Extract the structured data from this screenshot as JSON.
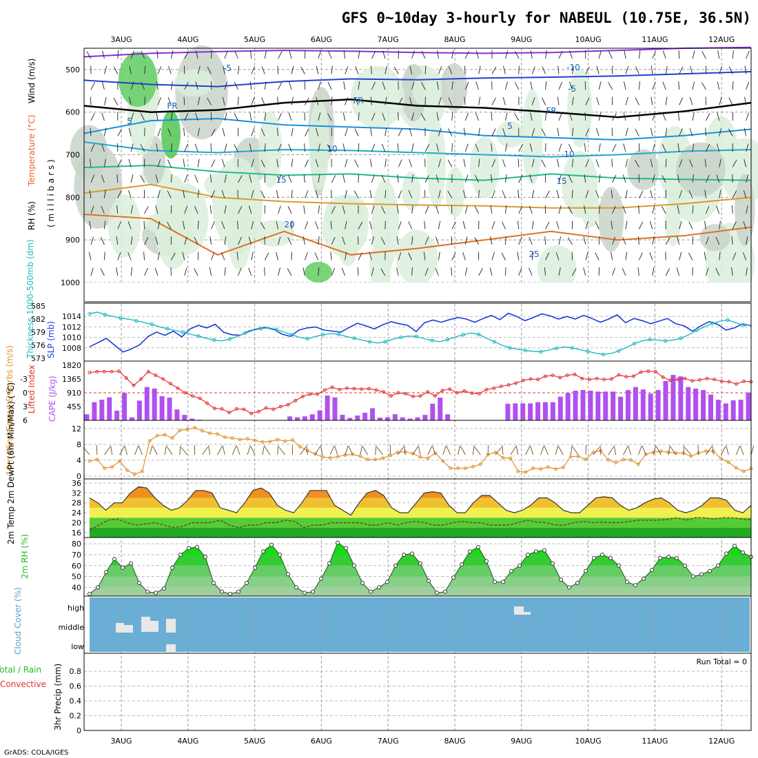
{
  "page": {
    "title": "GFS 0~10day 3-hourly for NABEUL (10.75E, 36.5N)",
    "credit": "GrADS: COLA/IGES"
  },
  "colors": {
    "temp_label": "#e8602c",
    "wind_label": "#000000",
    "rh_green": "#22bb22",
    "slp": "#1a3bd6",
    "thickness": "#20b8c0",
    "lifted": "#e03030",
    "cape": "#b050f0",
    "wind10": "#e0902c",
    "barb": "#704818",
    "cloud": "#6aaed6"
  },
  "chart_data": [
    {
      "id": "meteogram-axis",
      "type": "line",
      "x_tick_labels": [
        "3AUG",
        "4AUG",
        "5AUG",
        "6AUG",
        "7AUG",
        "8AUG",
        "9AUG",
        "10AUG",
        "11AUG",
        "12AUG"
      ],
      "x_range_days": [
        -0.5,
        9.3
      ]
    },
    {
      "id": "upper-air",
      "type": "heatmap",
      "ylabel_parts": [
        "RH (%)",
        "Temperature (°C)",
        "Wind (m/s)"
      ],
      "ylabel_units": "( m i l l i b a r s )",
      "yticks": [
        500,
        600,
        700,
        800,
        900,
        1000
      ],
      "ylim": [
        450,
        1000
      ],
      "isotherms": [
        {
          "label": "-10",
          "color": "#8a2be2",
          "values": [
            470,
            462,
            458,
            455,
            457,
            460,
            462,
            460,
            455,
            450,
            448
          ]
        },
        {
          "label": "-5",
          "color": "#2040d0",
          "values": [
            525,
            535,
            540,
            528,
            522,
            524,
            520,
            518,
            515,
            510,
            505
          ]
        },
        {
          "label": "FR",
          "color": "#000000",
          "values": [
            585,
            600,
            595,
            578,
            570,
            585,
            590,
            600,
            612,
            598,
            578
          ]
        },
        {
          "label": "5",
          "color": "#1890e0",
          "values": [
            650,
            620,
            615,
            630,
            635,
            640,
            655,
            660,
            665,
            655,
            640
          ]
        },
        {
          "label": "10",
          "color": "#20a8c8",
          "values": [
            670,
            690,
            695,
            688,
            690,
            695,
            700,
            705,
            700,
            692,
            688
          ]
        },
        {
          "label": "15",
          "color": "#20b890",
          "values": [
            730,
            725,
            740,
            748,
            745,
            755,
            760,
            745,
            755,
            758,
            760
          ]
        },
        {
          "label": "20",
          "color": "#d89a30",
          "values": [
            790,
            770,
            800,
            810,
            815,
            818,
            820,
            825,
            825,
            815,
            800
          ]
        },
        {
          "label": "25",
          "color": "#e07020",
          "values": [
            840,
            850,
            935,
            880,
            935,
            920,
            900,
            880,
            900,
            890,
            870
          ]
        }
      ],
      "contour_labels": [
        "5",
        "-5",
        "FR",
        "FR",
        "FR",
        "5",
        "10",
        "10",
        "15",
        "15",
        "20",
        "25",
        "-10",
        "-5"
      ]
    },
    {
      "id": "slp-thickness",
      "type": "line",
      "ylabel_slp": "SLP (mb)",
      "ylabel_thk": "Thickness 1000-500mb (dm)",
      "slp_ticks": [
        "1014",
        "1012",
        "1010",
        "1008"
      ],
      "thk_ticks": [
        "585",
        "582",
        "579",
        "576",
        "573"
      ],
      "slp_ylim": [
        1006,
        1016
      ],
      "thk_ylim": [
        573,
        585
      ],
      "series": [
        {
          "name": "SLP",
          "values": [
            1008.2,
            1009.0,
            1009.8,
            1008.5,
            1007.2,
            1007.8,
            1008.6,
            1010.2,
            1011.0,
            1010.4,
            1011.2,
            1010.1,
            1011.6,
            1012.3,
            1011.8,
            1012.5,
            1011.0,
            1010.5,
            1010.4,
            1011.2,
            1011.6,
            1011.9,
            1011.5,
            1010.6,
            1010.2,
            1011.4,
            1011.8,
            1012.0,
            1011.4,
            1011.2,
            1011.0,
            1011.9,
            1012.7,
            1012.2,
            1011.6,
            1012.4,
            1013.0,
            1012.6,
            1012.3,
            1011.1,
            1012.8,
            1013.3,
            1012.9,
            1013.4,
            1013.8,
            1013.5,
            1012.9,
            1013.6,
            1014.2,
            1013.4,
            1014.6,
            1014.0,
            1013.2,
            1013.8,
            1014.5,
            1014.1,
            1013.5,
            1014.0,
            1013.5,
            1014.2,
            1013.6,
            1012.9,
            1013.5,
            1014.3,
            1012.8,
            1013.6,
            1013.2,
            1012.6,
            1013.1,
            1013.6,
            1012.6,
            1012.2,
            1011.2,
            1012.2,
            1013.0,
            1012.5,
            1011.4,
            1011.8,
            1012.6,
            1012.2
          ]
        },
        {
          "name": "Thickness",
          "values": [
            583.2,
            583.6,
            583.0,
            582.6,
            582.2,
            582.0,
            581.6,
            581.2,
            580.8,
            580.2,
            579.8,
            579.4,
            579.0,
            578.5,
            578.1,
            577.6,
            577.2,
            577.0,
            577.4,
            578.0,
            578.8,
            579.4,
            579.8,
            580.0,
            579.6,
            579.0,
            578.4,
            577.8,
            577.5,
            578.0,
            578.4,
            578.7,
            578.5,
            578.0,
            577.6,
            577.2,
            576.8,
            576.5,
            576.8,
            577.4,
            577.8,
            578.1,
            578.0,
            577.5,
            577.1,
            576.8,
            577.3,
            577.9,
            578.4,
            578.8,
            578.5,
            577.6,
            576.8,
            576.0,
            575.4,
            575.1,
            574.8,
            574.6,
            574.5,
            574.9,
            575.3,
            575.6,
            575.4,
            575.0,
            574.6,
            574.2,
            573.9,
            574.1,
            574.7,
            575.5,
            576.4,
            577.0,
            577.3,
            577.2,
            577.0,
            577.2,
            577.6,
            578.4,
            579.4,
            580.2,
            581.0,
            581.5,
            581.8,
            581.2,
            580.6,
            580.6
          ]
        }
      ]
    },
    {
      "id": "cape-li",
      "type": "bar",
      "ylabel_li": "Lifted Index",
      "ylabel_cape": "CAPE (J/kg)",
      "li_ticks": [
        "-3",
        "0",
        "3",
        "6"
      ],
      "cape_ticks": [
        "1820",
        "1365",
        "910",
        "455"
      ],
      "li_ylim": [
        6,
        -6
      ],
      "cape_ylim": [
        0,
        1820
      ],
      "series": [
        {
          "name": "CAPE",
          "values": [
            200,
            600,
            680,
            760,
            320,
            900,
            100,
            650,
            1100,
            1050,
            800,
            750,
            360,
            180,
            60,
            20,
            0,
            0,
            0,
            0,
            0,
            0,
            0,
            0,
            0,
            0,
            10,
            130,
            100,
            130,
            200,
            330,
            820,
            760,
            180,
            80,
            160,
            250,
            400,
            90,
            100,
            200,
            100,
            60,
            100,
            180,
            550,
            750,
            200,
            0,
            0,
            0,
            0,
            0,
            0,
            0,
            550,
            560,
            560,
            560,
            600,
            600,
            600,
            780,
            900,
            980,
            1000,
            980,
            950,
            950,
            950,
            780,
            1000,
            1100,
            1020,
            880,
            1000,
            1300,
            1500,
            1450,
            1100,
            1050,
            1000,
            850,
            680,
            560,
            660,
            680,
            920
          ]
        },
        {
          "name": "Lifted Index",
          "values": [
            -4.4,
            -4.6,
            -4.6,
            -4.6,
            -4.7,
            -3.2,
            -1.6,
            -3.0,
            -4.6,
            -3.8,
            -3.0,
            -2.0,
            -1.0,
            0.0,
            0.7,
            1.2,
            2.3,
            3.4,
            3.5,
            4.3,
            3.5,
            3.6,
            4.5,
            4.1,
            3.3,
            3.6,
            3.0,
            2.6,
            1.7,
            0.8,
            0.3,
            0.3,
            -0.6,
            -1.2,
            -0.7,
            -1.0,
            -0.9,
            -0.8,
            -0.9,
            -0.6,
            -0.2,
            0.7,
            0.0,
            0.2,
            0.8,
            0.7,
            -0.2,
            0.7,
            -0.5,
            -0.8,
            0.0,
            -0.4,
            0.1,
            0.2,
            -0.7,
            -1.0,
            -1.4,
            -1.7,
            -2.1,
            -2.7,
            -3.0,
            -2.9,
            -3.6,
            -3.8,
            -3.3,
            -3.8,
            -4.0,
            -3.1,
            -2.9,
            -3.1,
            -2.9,
            -3.0,
            -3.9,
            -3.5,
            -3.6,
            -4.5,
            -4.7,
            -4.6,
            -3.4,
            -2.7,
            -2.9,
            -3.1,
            -2.6,
            -2.8,
            -3.1,
            -2.9,
            -2.5,
            -2.4,
            -1.9,
            -2.5,
            -2.4
          ]
        }
      ]
    },
    {
      "id": "wind10m",
      "type": "line",
      "ylabel": "10m Wind Speed & Barbs (m/s)",
      "yticks": [
        "12",
        "8",
        "4",
        "0"
      ],
      "ylim": [
        0,
        13
      ],
      "series": [
        {
          "name": "10m wind speed",
          "values": [
            3.8,
            4.2,
            2.0,
            2.3,
            3.8,
            1.5,
            0.5,
            1.2,
            8.9,
            10.2,
            10.4,
            9.6,
            11.5,
            11.8,
            12.2,
            11.4,
            10.8,
            10.6,
            9.8,
            9.6,
            9.2,
            9.4,
            9.0,
            8.6,
            8.7,
            9.2,
            8.8,
            9.1,
            7.4,
            6.4,
            5.6,
            4.8,
            4.6,
            4.9,
            5.3,
            5.5,
            5.0,
            4.2,
            4.2,
            4.5,
            5.2,
            6.0,
            6.1,
            5.7,
            4.8,
            4.5,
            5.8,
            3.8,
            2.0,
            2.0,
            2.0,
            2.4,
            3.0,
            5.4,
            6.0,
            4.6,
            4.5,
            1.2,
            1.0,
            2.0,
            1.8,
            2.3,
            1.8,
            2.2,
            4.9,
            5.0,
            4.2,
            6.0,
            6.4,
            4.1,
            3.4,
            4.2,
            4.1,
            3.0,
            5.5,
            6.0,
            6.3,
            6.0,
            5.8,
            5.8,
            5.0,
            5.8,
            6.3,
            6.3,
            4.4,
            3.5,
            2.1,
            1.2,
            1.9
          ]
        }
      ]
    },
    {
      "id": "temp2m",
      "type": "area",
      "ylabel": "2m Temp 2m DewPt (6hr Min/Max) (°C)",
      "yticks": [
        "36",
        "32",
        "28",
        "24",
        "20",
        "16"
      ],
      "ylim": [
        14,
        36
      ],
      "series": [
        {
          "name": "2m Temp",
          "values": [
            30,
            28,
            25,
            28,
            28,
            32,
            34.5,
            34,
            30,
            27,
            25,
            26,
            29,
            33,
            33,
            32,
            26,
            25,
            24,
            28,
            33,
            34,
            32,
            27,
            25,
            24,
            28,
            33,
            33,
            33,
            27,
            25,
            23,
            28,
            32,
            33,
            31,
            26,
            24,
            24,
            28,
            32,
            32.5,
            32,
            27,
            24,
            24,
            28,
            31,
            31,
            28,
            25,
            24,
            25,
            27,
            30,
            30,
            28,
            25,
            24,
            24,
            27,
            30,
            30.5,
            30,
            27,
            25,
            26,
            28,
            29.5,
            30,
            28,
            25,
            24,
            25,
            27,
            30,
            30,
            29,
            25,
            24,
            27
          ]
        },
        {
          "name": "2m DewPt",
          "values": [
            17,
            19,
            21,
            21.5,
            20,
            19,
            19.5,
            20,
            19,
            18,
            18.5,
            20,
            20,
            20,
            21,
            19,
            18,
            19,
            19,
            20,
            20,
            21,
            20.5,
            18,
            19,
            19,
            20,
            20,
            20,
            20,
            19,
            19,
            20,
            19,
            20,
            20.5,
            20,
            19,
            19,
            20,
            20.5,
            20,
            20,
            19,
            19,
            19,
            20,
            21,
            20.2,
            20,
            19,
            19,
            20,
            20.5,
            20,
            20.2,
            20,
            20,
            20.5,
            21,
            21,
            21,
            21.3,
            22,
            21,
            22,
            22,
            21.5,
            22,
            22,
            21.5,
            21.2
          ]
        }
      ]
    },
    {
      "id": "rh2m",
      "type": "area",
      "ylabel": "2m RH (%)",
      "yticks": [
        "80",
        "70",
        "60",
        "50",
        "40"
      ],
      "ylim": [
        32,
        82
      ],
      "series": [
        {
          "name": "2m RH",
          "values": [
            34,
            40,
            54,
            66,
            58,
            62,
            44,
            36,
            35,
            39,
            58,
            70,
            76,
            77,
            68,
            44,
            36,
            34,
            36,
            44,
            58,
            73,
            79,
            70,
            52,
            40,
            35,
            36,
            48,
            62,
            81,
            76,
            60,
            44,
            36,
            40,
            45,
            60,
            70,
            71,
            62,
            46,
            35,
            36,
            49,
            61,
            73,
            77,
            64,
            45,
            45,
            55,
            60,
            70,
            73,
            74,
            62,
            47,
            40,
            44,
            55,
            67,
            70,
            67,
            60,
            45,
            42,
            48,
            56,
            67,
            68,
            67,
            60,
            50,
            52,
            55,
            60,
            71,
            78,
            72,
            68
          ]
        }
      ]
    },
    {
      "id": "cloud",
      "type": "bar",
      "ylabel": "Cloud Cover (%)",
      "levels": [
        "high",
        "middle",
        "low"
      ]
    },
    {
      "id": "precip",
      "type": "bar",
      "ylabel_total": "Total / Rain",
      "ylabel_conv": "Convective",
      "ylabel_axis": "3hr Precip (mm)",
      "yticks": [
        "0.8",
        "0.6",
        "0.4",
        "0.2",
        "0"
      ],
      "ylim": [
        0,
        0.95
      ],
      "run_total": "Run Total = 0"
    }
  ]
}
